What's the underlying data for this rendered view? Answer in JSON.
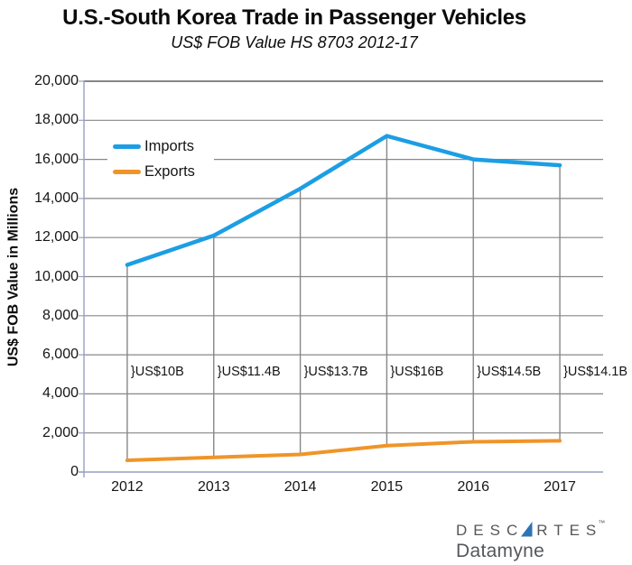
{
  "title": "U.S.-South Korea Trade in Passenger Vehicles",
  "subtitle": "US$ FOB Value HS 8703 2012-17",
  "chart_data": {
    "type": "line",
    "title": "U.S.-South Korea Trade in Passenger Vehicles",
    "subtitle": "US$ FOB Value HS 8703 2012-17",
    "xlabel": "",
    "ylabel": "US$ FOB Value in Millions",
    "ylim": [
      0,
      20000
    ],
    "ytick_step": 2000,
    "yticks": [
      "20,000",
      "18,000",
      "16,000",
      "14,000",
      "12,000",
      "10,000",
      "8,000",
      "6,000",
      "4,000",
      "2,000",
      "0"
    ],
    "categories": [
      "2012",
      "2013",
      "2014",
      "2015",
      "2016",
      "2017"
    ],
    "series": [
      {
        "name": "Imports",
        "color": "#1C9EE4",
        "values": [
          10600,
          12100,
          14500,
          17200,
          16000,
          15700
        ]
      },
      {
        "name": "Exports",
        "color": "#EF9528",
        "values": [
          600,
          750,
          900,
          1350,
          1550,
          1600
        ]
      }
    ],
    "annotations": [
      "}US$10B",
      "}US$11.4B",
      "}US$13.7B",
      "}US$16B",
      "}US$14.5B",
      "}US$14.1B"
    ],
    "annotation_meaning": "trade gap between Imports and Exports per year",
    "grid": "horizontal gridlines plus vertical high-low lines between series at each year",
    "legend_position": "inside-top-left"
  },
  "legend": {
    "imports_label": "Imports",
    "exports_label": "Exports"
  },
  "logo": {
    "part1": "DESC",
    "part2": "RTES",
    "trademark": "™",
    "subbrand": "Datamyne"
  },
  "colors": {
    "imports_line": "#1C9EE4",
    "exports_line": "#EF9528",
    "gridline": "#878787",
    "axis_line": "#95A0C4",
    "logo_text": "#55575b",
    "logo_sail": "#2E74B5",
    "background": "#FFFFFF"
  }
}
